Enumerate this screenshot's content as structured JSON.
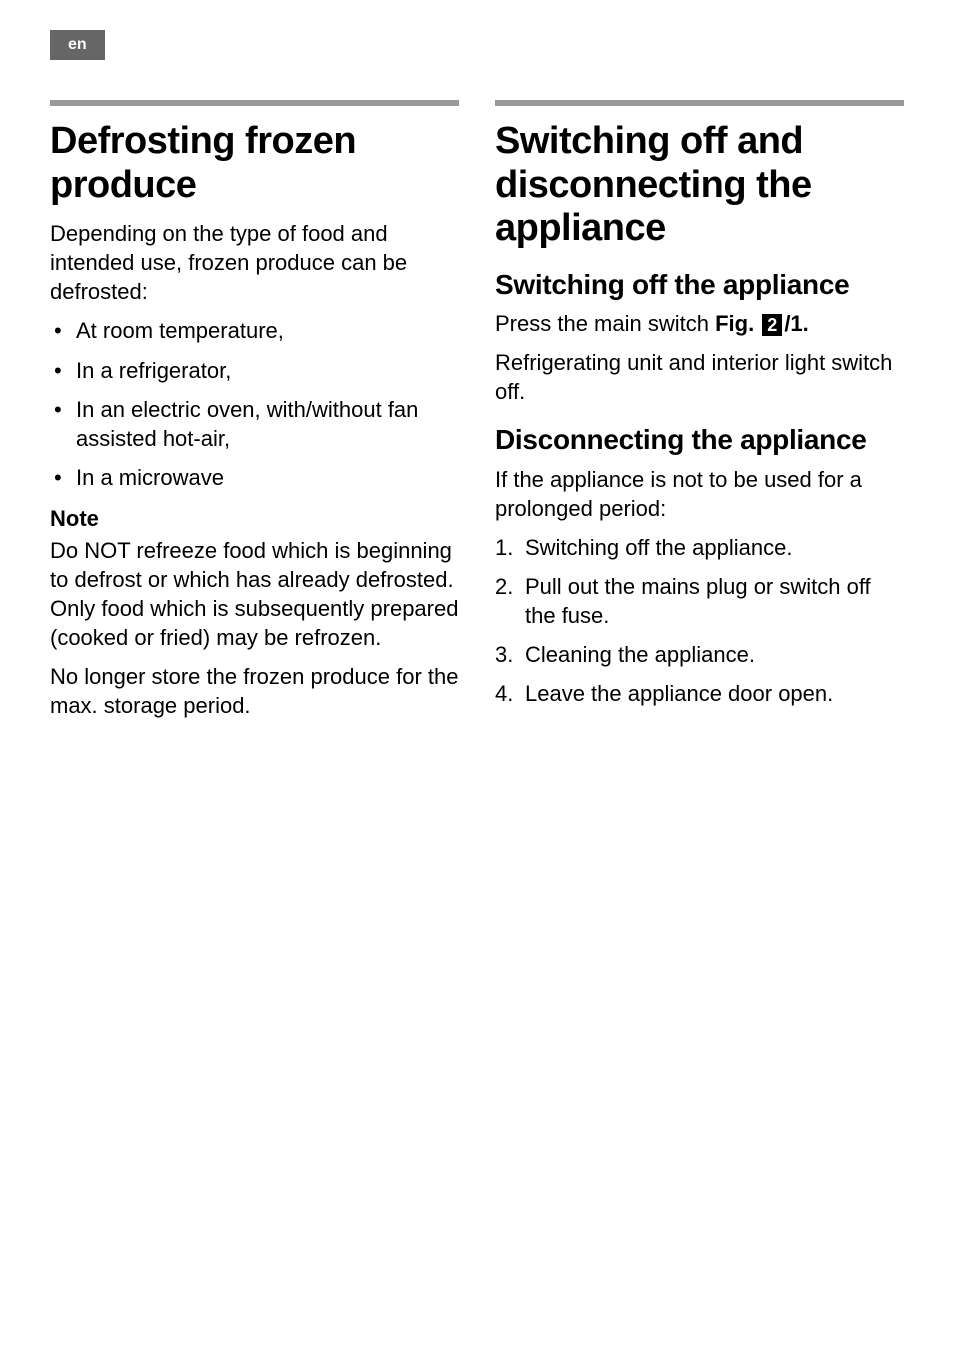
{
  "lang_tab": "en",
  "left": {
    "heading": "Defrosting frozen produce",
    "intro": "Depending on the type of food and intended use, frozen produce can be defrosted:",
    "methods": [
      "At room temperature,",
      "In a refrigerator,",
      "In an electric oven, with/without fan assisted hot-air,",
      "In a microwave"
    ],
    "note_label": "Note",
    "note_para1": "Do NOT refreeze food which is beginning to defrost or which has already defrosted. Only food which is subsequently prepared (cooked or fried) may be refrozen.",
    "note_para2": "No longer store the frozen produce for the max. storage period."
  },
  "right": {
    "heading": "Switching off and disconnecting the appliance",
    "sub1": {
      "heading": "Switching off the appliance",
      "lead_prefix": "Press the main switch ",
      "fig_label": "Fig.",
      "fig_num": "2",
      "fig_suffix": "/1.",
      "body": "Refrigerating unit and interior light switch off."
    },
    "sub2": {
      "heading": "Disconnecting the appliance",
      "intro": "If the appliance is not to be used for a prolonged period:",
      "steps": [
        "Switching off the appliance.",
        "Pull out the mains plug or switch off the fuse.",
        "Cleaning the appliance.",
        "Leave the appliance door open."
      ]
    }
  },
  "style": {
    "page_bg": "#ffffff",
    "text_color": "#000000",
    "tab_bg": "#666666",
    "tab_fg": "#ffffff",
    "rule_color": "#999999",
    "h1_fontsize": 38,
    "h2_fontsize": 28,
    "h3_fontsize": 22,
    "body_fontsize": 22
  }
}
